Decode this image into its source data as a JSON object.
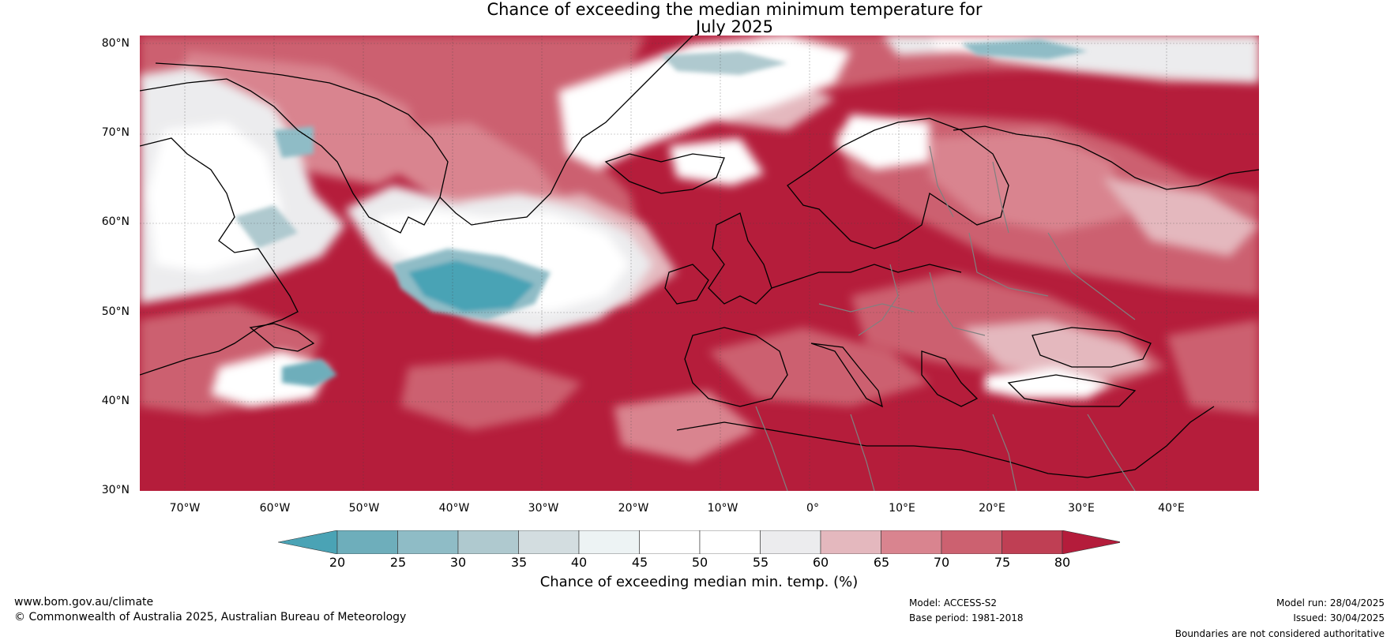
{
  "title_line1": "Chance of exceeding the median minimum temperature for",
  "title_line2": "July 2025",
  "lat_labels": [
    "80°N",
    "70°N",
    "60°N",
    "50°N",
    "40°N",
    "30°N"
  ],
  "lon_labels": [
    "70°W",
    "60°W",
    "50°W",
    "40°W",
    "30°W",
    "20°W",
    "10°W",
    "0°",
    "10°E",
    "20°E",
    "30°E",
    "40°E"
  ],
  "colorbar": {
    "ticks": [
      "20",
      "25",
      "30",
      "35",
      "40",
      "45",
      "50",
      "55",
      "60",
      "65",
      "70",
      "75",
      "80"
    ],
    "colors": [
      "#4aa3b5",
      "#6eaebb",
      "#8fbcc6",
      "#afc9cf",
      "#d3dde0",
      "#edf3f4",
      "#ffffff",
      "#ffffff",
      "#ececee",
      "#e4b8be",
      "#d9848f",
      "#cc6170",
      "#bf3f54",
      "#b41c3b"
    ],
    "label": "Chance of exceeding median min. temp. (%)"
  },
  "footer": {
    "website": "www.bom.gov.au/climate",
    "copyright": "© Commonwealth of Australia 2025, Australian Bureau of Meteorology",
    "model": "Model: ACCESS-S2",
    "base_period": "Base period: 1981-2018",
    "model_run": "Model run: 28/04/2025",
    "issued": "Issued: 30/04/2025",
    "disclaimer": "Boundaries are not considered authoritative"
  }
}
